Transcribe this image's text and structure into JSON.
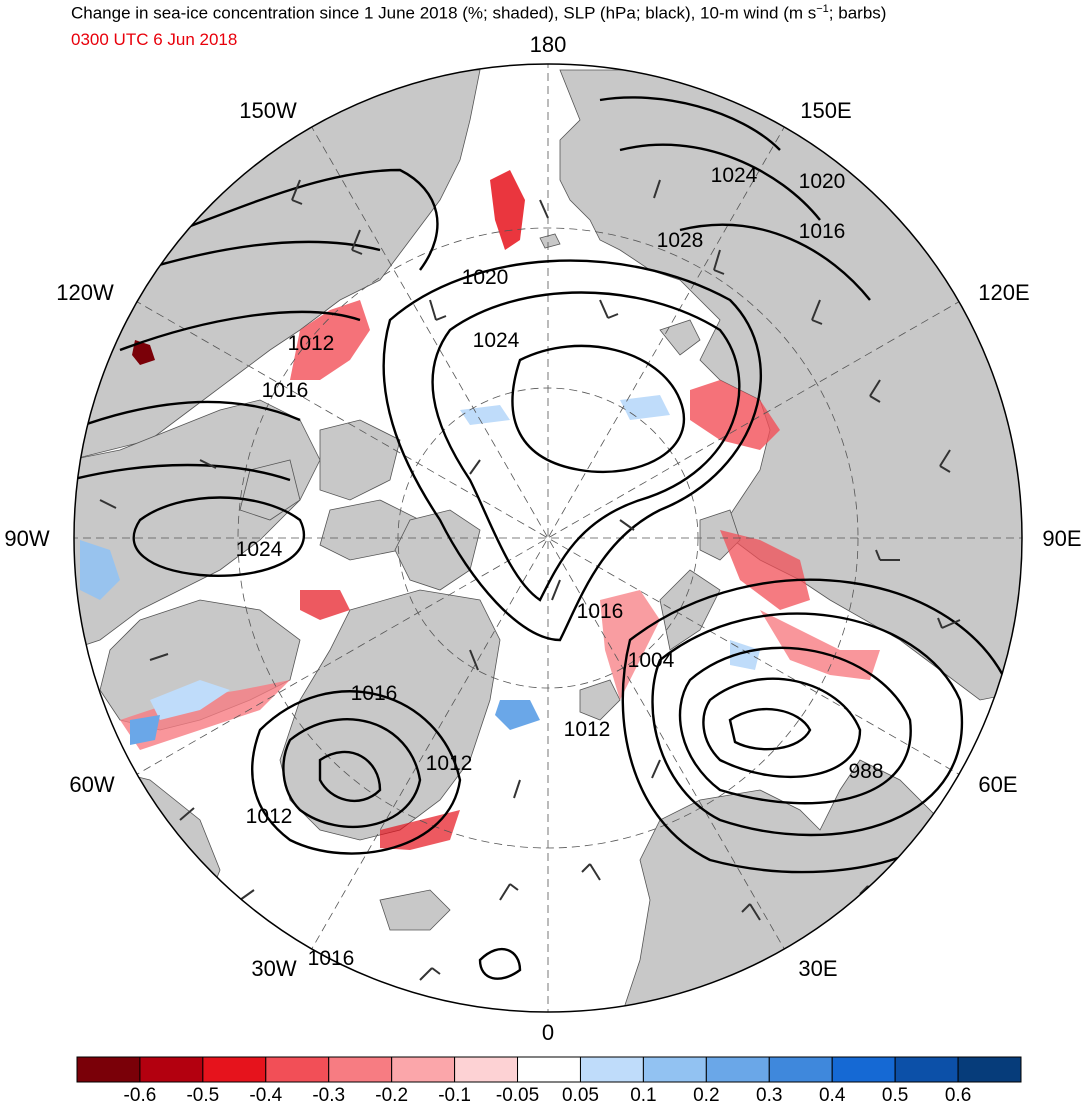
{
  "header": {
    "title_pre": "Change in sea-ice concentration since 1 June 2018 (%; shaded), SLP (hPa; black), 10-m wind (m s",
    "title_sup": "−1",
    "title_post": "; barbs)",
    "valid_time": "0300 UTC 6 Jun 2018",
    "valid_time_color": "#e8000b"
  },
  "map": {
    "projection": "north-polar-stereographic",
    "land_color": "#c8c8c8",
    "ocean_color": "#ffffff",
    "meridian_labels": [
      {
        "text": "180"
      },
      {
        "text": "150W"
      },
      {
        "text": "150E"
      },
      {
        "text": "120W"
      },
      {
        "text": "120E"
      },
      {
        "text": "90W"
      },
      {
        "text": "90E"
      },
      {
        "text": "60W"
      },
      {
        "text": "60E"
      },
      {
        "text": "30W"
      },
      {
        "text": "30E"
      },
      {
        "text": "0"
      }
    ],
    "slp_contour_labels": [
      {
        "text": "1024",
        "region": "east-siberia"
      },
      {
        "text": "1020",
        "region": "east-siberia"
      },
      {
        "text": "1016",
        "region": "east-siberia"
      },
      {
        "text": "1028",
        "region": "east-siberian-sea"
      },
      {
        "text": "1020",
        "region": "chukchi-sea"
      },
      {
        "text": "1024",
        "region": "central-arctic"
      },
      {
        "text": "1012",
        "region": "beaufort-coast"
      },
      {
        "text": "1016",
        "region": "mackenzie"
      },
      {
        "text": "1024",
        "region": "hudson-bay"
      },
      {
        "text": "1016",
        "region": "lincoln-sea"
      },
      {
        "text": "1004",
        "region": "kara-sea"
      },
      {
        "text": "1016",
        "region": "baffin"
      },
      {
        "text": "1012",
        "region": "fram-strait"
      },
      {
        "text": "1012",
        "region": "greenland-east"
      },
      {
        "text": "988",
        "region": "west-siberia-low"
      },
      {
        "text": "1012",
        "region": "greenland-south"
      },
      {
        "text": "1016",
        "region": "north-atlantic"
      }
    ],
    "slp_low_center": {
      "value": "988"
    }
  },
  "colorbar": {
    "colors": [
      "#7a0008",
      "#b3000f",
      "#e6131c",
      "#f24f57",
      "#f77c82",
      "#fba6aa",
      "#fdd2d4",
      "#ffffff",
      "#bfdcfa",
      "#92c2f2",
      "#6aa7e8",
      "#3f88dc",
      "#1569d4",
      "#0c50a8",
      "#063c7a"
    ],
    "tick_labels": [
      "-0.6",
      "-0.5",
      "-0.4",
      "-0.3",
      "-0.2",
      "-0.1",
      "-0.05",
      "0.05",
      "0.1",
      "0.2",
      "0.3",
      "0.4",
      "0.5",
      "0.6"
    ]
  }
}
